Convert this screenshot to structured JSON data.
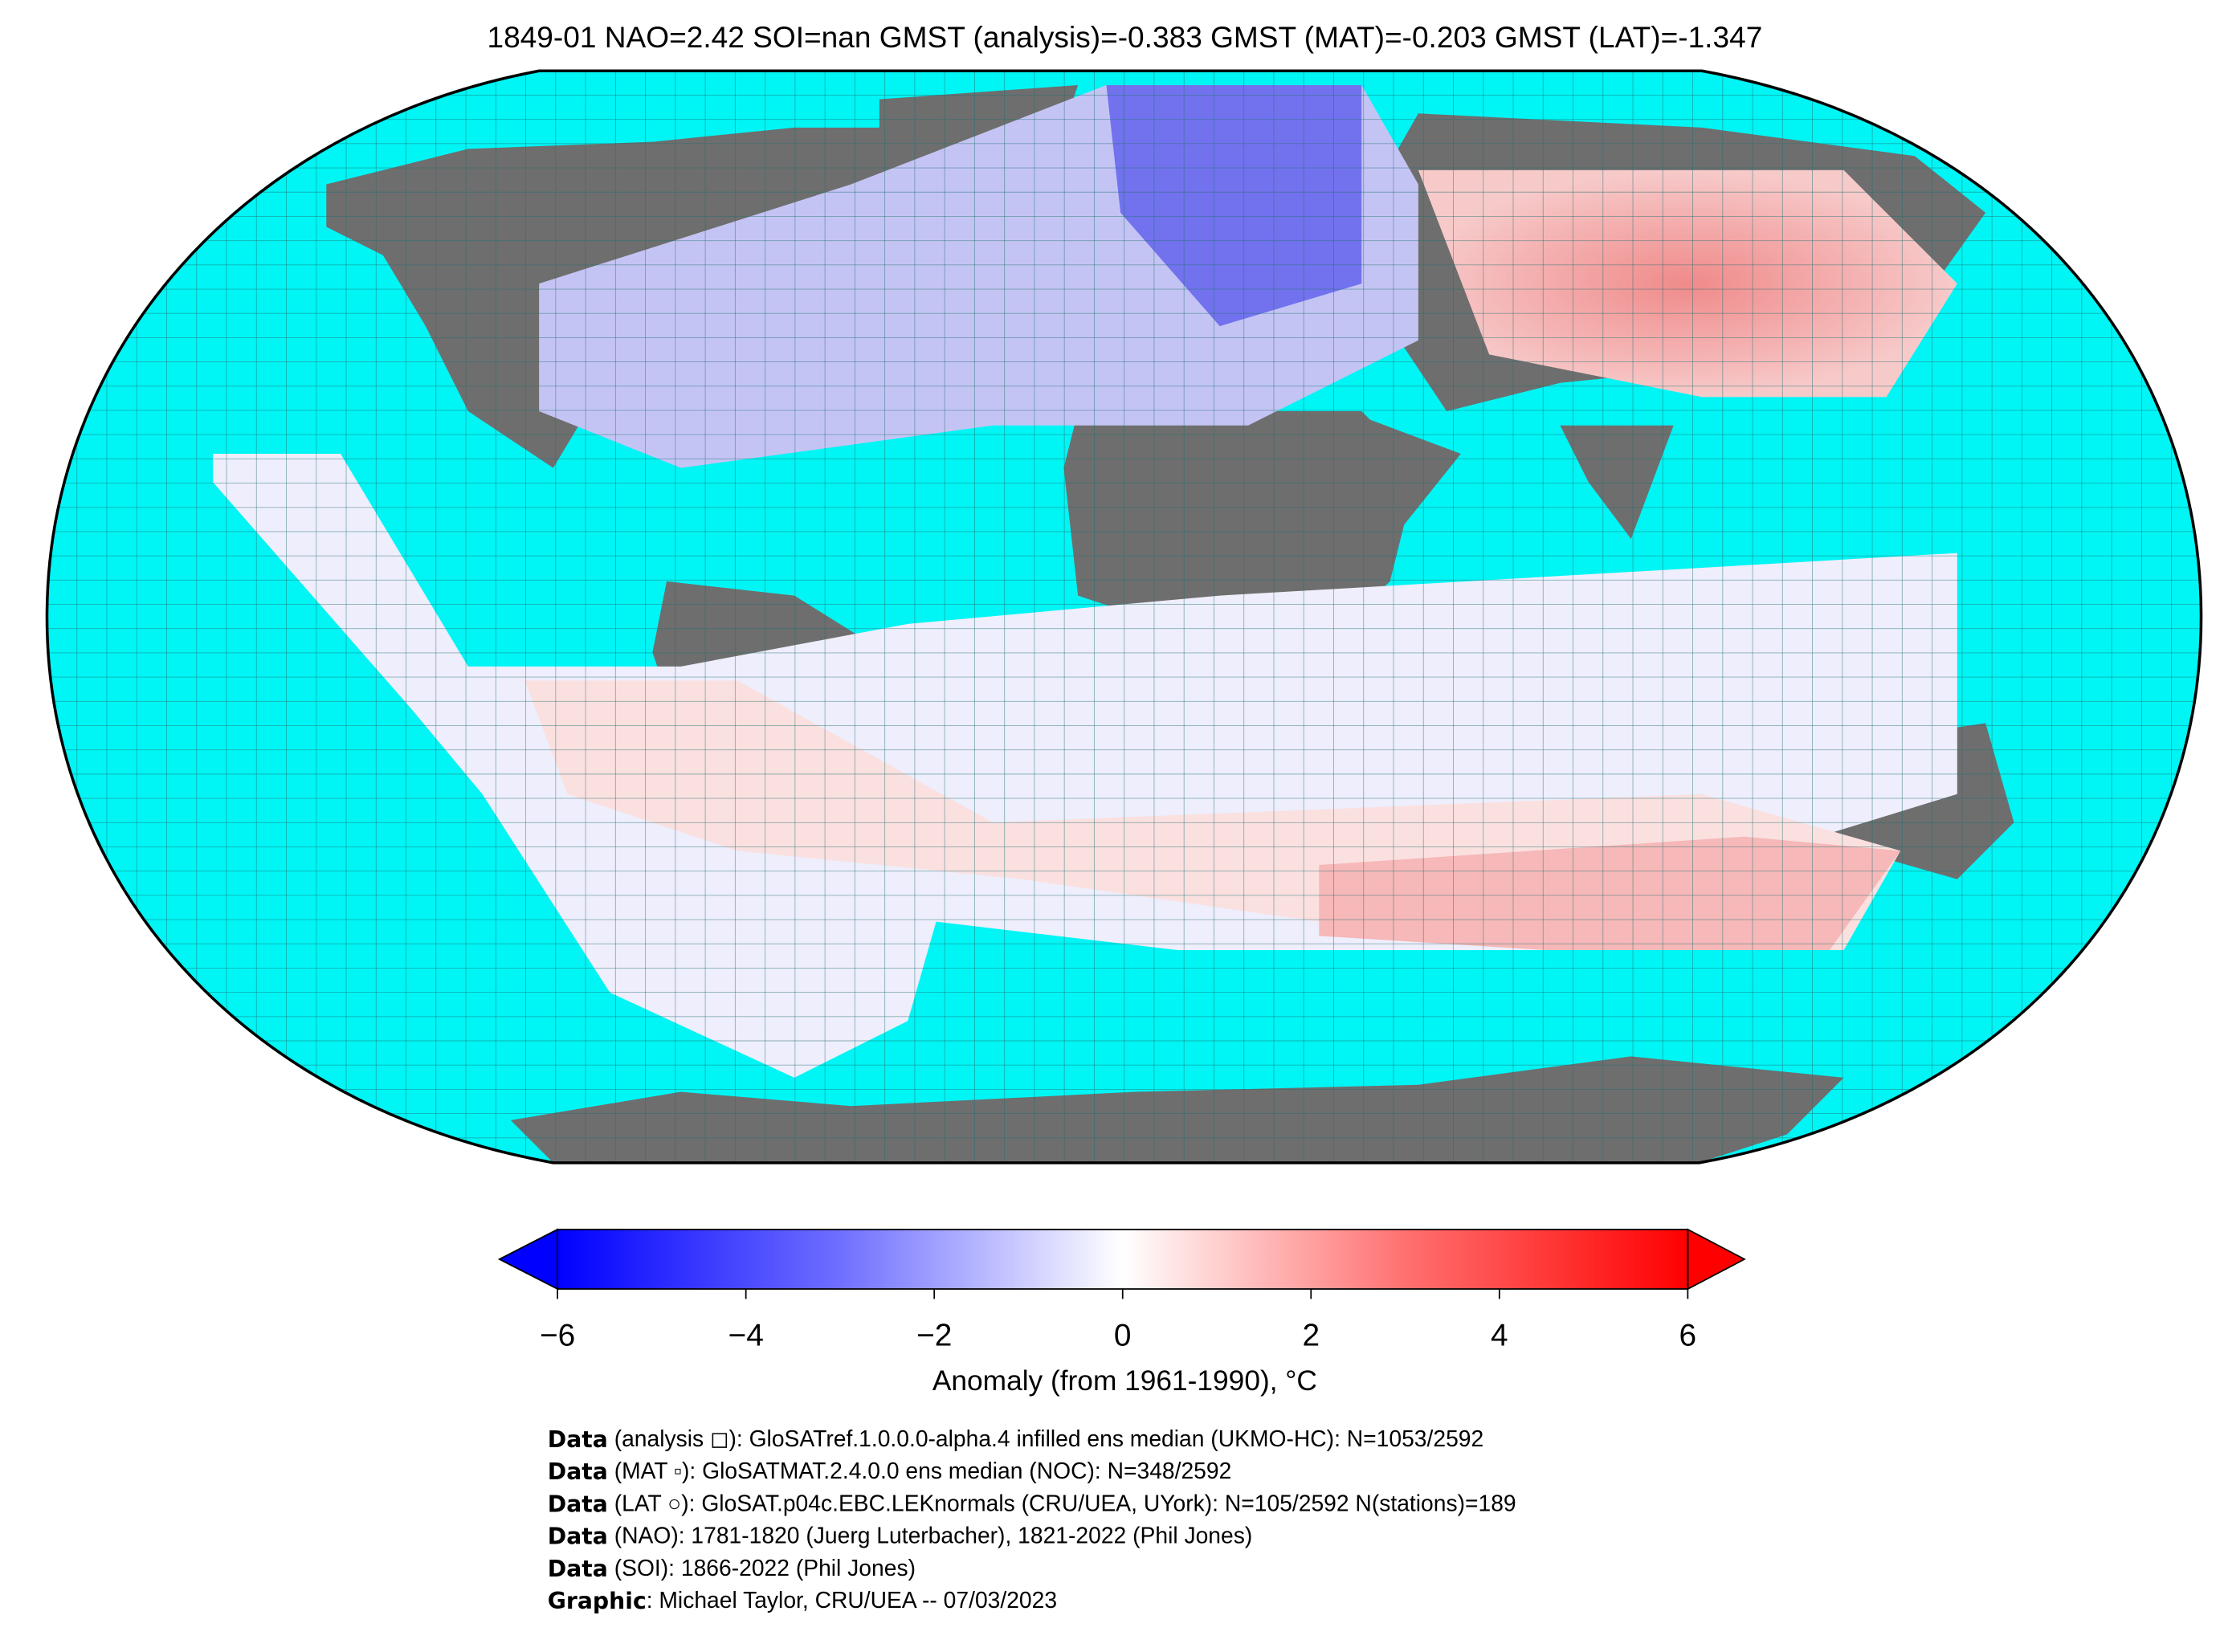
{
  "title": "1849-01 NAO=2.42 SOI=nan GMST (analysis)=-0.383 GMST (MAT)=-0.203 GMST (LAT)=-1.347",
  "colorbar": {
    "label": "Anomaly (from 1961-1990), °C",
    "range": [
      -6,
      6
    ],
    "ticks": [
      {
        "value": -6,
        "label": "−6"
      },
      {
        "value": -4,
        "label": "−4"
      },
      {
        "value": -2,
        "label": "−2"
      },
      0,
      2,
      4,
      6
    ]
  },
  "credits": [
    {
      "key": "Data",
      "text": " (analysis ◻): GloSATref.1.0.0.0-alpha.4 infilled ens median (UKMO-HC): N=1053/2592"
    },
    {
      "key": "Data",
      "text": " (MAT ▫): GloSATMAT.2.4.0.0 ens median (NOC): N=348/2592"
    },
    {
      "key": "Data",
      "text": " (LAT ○): GloSAT.p04c.EBC.LEKnormals (CRU/UEA, UYork): N=105/2592 N(stations)=189"
    },
    {
      "key": "Data",
      "text": " (NAO): 1781-1820 (Juerg Luterbacher), 1821-2022 (Phil Jones)"
    },
    {
      "key": "Data",
      "text": " (SOI): 1866-2022 (Phil Jones)"
    },
    {
      "key": "Graphic",
      "text": ": Michael Taylor, CRU/UEA -- 07/03/2023"
    }
  ]
}
